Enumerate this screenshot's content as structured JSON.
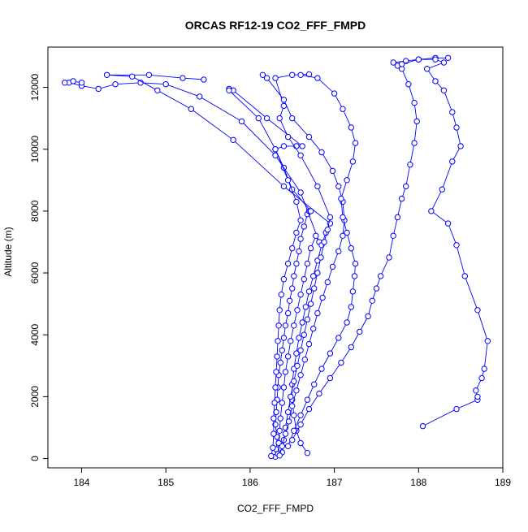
{
  "chart_data": {
    "type": "scatter",
    "title": "ORCAS RF12-19 CO2_FFF_FMPD",
    "xlabel": "CO2_FFF_FMPD",
    "ylabel": "Altitude (m)",
    "xlim": [
      183.6,
      189.0
    ],
    "ylim": [
      -300,
      13300
    ],
    "xticks": [
      184,
      185,
      186,
      187,
      188,
      189
    ],
    "yticks": [
      0,
      2000,
      4000,
      6000,
      8000,
      10000,
      12000
    ],
    "color": "#0000ff",
    "grid": false,
    "marker": "open-circle",
    "lines": true,
    "series": [
      {
        "values": [
          [
            186.3,
            60
          ],
          [
            186.31,
            300
          ],
          [
            186.32,
            700
          ],
          [
            186.3,
            1100
          ],
          [
            186.31,
            1500
          ],
          [
            186.32,
            1900
          ],
          [
            186.33,
            2300
          ],
          [
            186.34,
            2700
          ],
          [
            186.36,
            3100
          ],
          [
            186.38,
            3500
          ],
          [
            186.4,
            3900
          ],
          [
            186.42,
            4300
          ],
          [
            186.45,
            4700
          ],
          [
            186.47,
            5100
          ],
          [
            186.5,
            5500
          ],
          [
            186.52,
            5900
          ],
          [
            186.55,
            6300
          ],
          [
            186.58,
            6700
          ],
          [
            186.6,
            7100
          ],
          [
            186.64,
            7500
          ],
          [
            186.68,
            7900
          ],
          [
            186.7,
            8000
          ],
          [
            186.72,
            8000
          ],
          [
            186.5,
            8700
          ],
          [
            186.4,
            9400
          ],
          [
            186.3,
            10000
          ],
          [
            186.4,
            10100
          ],
          [
            186.55,
            10100
          ],
          [
            186.62,
            10100
          ],
          [
            186.2,
            11000
          ],
          [
            185.8,
            11900
          ],
          [
            185.75,
            11950
          ]
        ]
      },
      {
        "values": [
          [
            186.33,
            150
          ],
          [
            186.34,
            500
          ],
          [
            186.35,
            900
          ],
          [
            186.36,
            1300
          ],
          [
            186.38,
            1800
          ],
          [
            186.4,
            2300
          ],
          [
            186.42,
            2800
          ],
          [
            186.45,
            3300
          ],
          [
            186.48,
            3800
          ],
          [
            186.52,
            4300
          ],
          [
            186.56,
            4800
          ],
          [
            186.6,
            5300
          ],
          [
            186.64,
            5800
          ],
          [
            186.68,
            6300
          ],
          [
            186.72,
            6800
          ],
          [
            186.78,
            7200
          ],
          [
            186.82,
            7000
          ],
          [
            186.6,
            8600
          ],
          [
            186.3,
            9800
          ],
          [
            185.9,
            10900
          ],
          [
            185.4,
            11700
          ],
          [
            185.0,
            12100
          ],
          [
            184.7,
            12150
          ],
          [
            184.4,
            12100
          ],
          [
            184.2,
            11950
          ],
          [
            184.0,
            12050
          ],
          [
            183.85,
            12150
          ],
          [
            183.8,
            12150
          ],
          [
            183.9,
            12200
          ],
          [
            184.0,
            12150
          ]
        ]
      },
      {
        "values": [
          [
            186.68,
            180
          ],
          [
            186.6,
            500
          ],
          [
            186.55,
            900
          ],
          [
            186.52,
            1400
          ],
          [
            186.5,
            1900
          ],
          [
            186.5,
            2400
          ],
          [
            186.52,
            2900
          ],
          [
            186.55,
            3400
          ],
          [
            186.58,
            3900
          ],
          [
            186.62,
            4400
          ],
          [
            186.66,
            4900
          ],
          [
            186.7,
            5400
          ],
          [
            186.75,
            5900
          ],
          [
            186.8,
            6400
          ],
          [
            186.85,
            6900
          ],
          [
            186.9,
            7300
          ],
          [
            186.95,
            7600
          ],
          [
            186.4,
            8800
          ],
          [
            185.8,
            10300
          ],
          [
            185.3,
            11300
          ],
          [
            184.9,
            11900
          ],
          [
            184.6,
            12350
          ],
          [
            184.3,
            12400
          ],
          [
            184.8,
            12400
          ],
          [
            185.2,
            12300
          ],
          [
            185.45,
            12250
          ]
        ]
      },
      {
        "values": [
          [
            186.38,
            200
          ],
          [
            186.4,
            600
          ],
          [
            186.42,
            1000
          ],
          [
            186.45,
            1500
          ],
          [
            186.48,
            2000
          ],
          [
            186.52,
            2500
          ],
          [
            186.56,
            3000
          ],
          [
            186.6,
            3500
          ],
          [
            186.64,
            4000
          ],
          [
            186.68,
            4500
          ],
          [
            186.72,
            5000
          ],
          [
            186.76,
            5500
          ],
          [
            186.8,
            6000
          ],
          [
            186.84,
            6500
          ],
          [
            186.88,
            7000
          ],
          [
            186.92,
            7400
          ],
          [
            186.95,
            7800
          ],
          [
            186.8,
            8800
          ],
          [
            186.6,
            9800
          ],
          [
            186.45,
            10400
          ],
          [
            186.35,
            11000
          ],
          [
            186.4,
            11400
          ],
          [
            186.3,
            12300
          ],
          [
            186.5,
            12400
          ],
          [
            186.7,
            12420
          ]
        ]
      },
      {
        "values": [
          [
            186.35,
            100
          ],
          [
            186.38,
            400
          ],
          [
            186.42,
            800
          ],
          [
            186.46,
            1200
          ],
          [
            186.5,
            1700
          ],
          [
            186.55,
            2200
          ],
          [
            186.6,
            2700
          ],
          [
            186.65,
            3200
          ],
          [
            186.7,
            3700
          ],
          [
            186.75,
            4200
          ],
          [
            186.8,
            4700
          ],
          [
            186.86,
            5200
          ],
          [
            186.92,
            5700
          ],
          [
            186.98,
            6200
          ],
          [
            187.05,
            6700
          ],
          [
            187.1,
            7200
          ],
          [
            187.12,
            7700
          ],
          [
            187.1,
            8300
          ],
          [
            187.05,
            8800
          ],
          [
            186.98,
            9300
          ],
          [
            186.85,
            9900
          ],
          [
            186.7,
            10400
          ],
          [
            186.5,
            11000
          ],
          [
            186.4,
            11600
          ],
          [
            186.2,
            12300
          ],
          [
            186.15,
            12400
          ]
        ]
      },
      {
        "values": [
          [
            186.45,
            400
          ],
          [
            186.52,
            900
          ],
          [
            186.6,
            1400
          ],
          [
            186.68,
            1900
          ],
          [
            186.76,
            2400
          ],
          [
            186.85,
            2900
          ],
          [
            186.95,
            3400
          ],
          [
            187.05,
            3900
          ],
          [
            187.15,
            4400
          ],
          [
            187.2,
            4900
          ],
          [
            187.22,
            5400
          ],
          [
            187.24,
            5900
          ],
          [
            187.25,
            6300
          ],
          [
            187.2,
            6800
          ],
          [
            187.15,
            7300
          ],
          [
            187.1,
            7800
          ],
          [
            187.08,
            8400
          ],
          [
            187.15,
            9000
          ],
          [
            187.22,
            9600
          ],
          [
            187.25,
            10200
          ],
          [
            187.2,
            10700
          ],
          [
            187.1,
            11300
          ],
          [
            187.0,
            11800
          ],
          [
            186.8,
            12300
          ],
          [
            186.6,
            12400
          ]
        ]
      },
      {
        "values": [
          [
            186.5,
            600
          ],
          [
            186.6,
            1100
          ],
          [
            186.7,
            1600
          ],
          [
            186.82,
            2100
          ],
          [
            186.95,
            2600
          ],
          [
            187.08,
            3100
          ],
          [
            187.2,
            3600
          ],
          [
            187.3,
            4100
          ],
          [
            187.4,
            4600
          ],
          [
            187.45,
            5100
          ],
          [
            187.5,
            5500
          ],
          [
            187.55,
            5900
          ],
          [
            187.65,
            6500
          ],
          [
            187.7,
            7200
          ],
          [
            187.75,
            7800
          ],
          [
            187.8,
            8400
          ],
          [
            187.85,
            8800
          ],
          [
            187.9,
            9500
          ],
          [
            187.95,
            10200
          ],
          [
            187.98,
            10900
          ],
          [
            187.95,
            11500
          ],
          [
            187.88,
            12100
          ],
          [
            187.8,
            12600
          ],
          [
            187.75,
            12700
          ],
          [
            187.7,
            12800
          ],
          [
            187.85,
            12850
          ],
          [
            188.0,
            12900
          ],
          [
            188.2,
            12950
          ],
          [
            188.35,
            12950
          ]
        ]
      },
      {
        "values": [
          [
            188.05,
            1050
          ],
          [
            188.45,
            1600
          ],
          [
            188.7,
            1900
          ],
          [
            188.7,
            2000
          ],
          [
            188.68,
            2200
          ],
          [
            188.75,
            2600
          ],
          [
            188.78,
            2900
          ],
          [
            188.82,
            3800
          ],
          [
            188.7,
            4800
          ],
          [
            188.55,
            5900
          ],
          [
            188.45,
            6900
          ],
          [
            188.35,
            7600
          ],
          [
            188.15,
            8000
          ],
          [
            188.28,
            8700
          ],
          [
            188.4,
            9600
          ],
          [
            188.5,
            10100
          ],
          [
            188.45,
            10700
          ],
          [
            188.4,
            11200
          ],
          [
            188.3,
            11900
          ],
          [
            188.2,
            12200
          ],
          [
            188.1,
            12600
          ],
          [
            188.3,
            12800
          ],
          [
            188.2,
            12900
          ],
          [
            188.0,
            12900
          ],
          [
            187.8,
            12750
          ]
        ]
      },
      {
        "values": [
          [
            186.25,
            80
          ],
          [
            186.27,
            350
          ],
          [
            186.28,
            800
          ],
          [
            186.28,
            1300
          ],
          [
            186.29,
            1800
          ],
          [
            186.3,
            2300
          ],
          [
            186.31,
            2800
          ],
          [
            186.32,
            3300
          ],
          [
            186.33,
            3800
          ],
          [
            186.34,
            4300
          ],
          [
            186.35,
            4800
          ],
          [
            186.37,
            5300
          ],
          [
            186.4,
            5800
          ],
          [
            186.45,
            6300
          ],
          [
            186.5,
            6800
          ],
          [
            186.55,
            7300
          ],
          [
            186.6,
            7700
          ],
          [
            186.55,
            8300
          ],
          [
            186.45,
            9000
          ],
          [
            186.3,
            10000
          ],
          [
            186.1,
            11000
          ],
          [
            185.75,
            11900
          ]
        ]
      }
    ]
  }
}
